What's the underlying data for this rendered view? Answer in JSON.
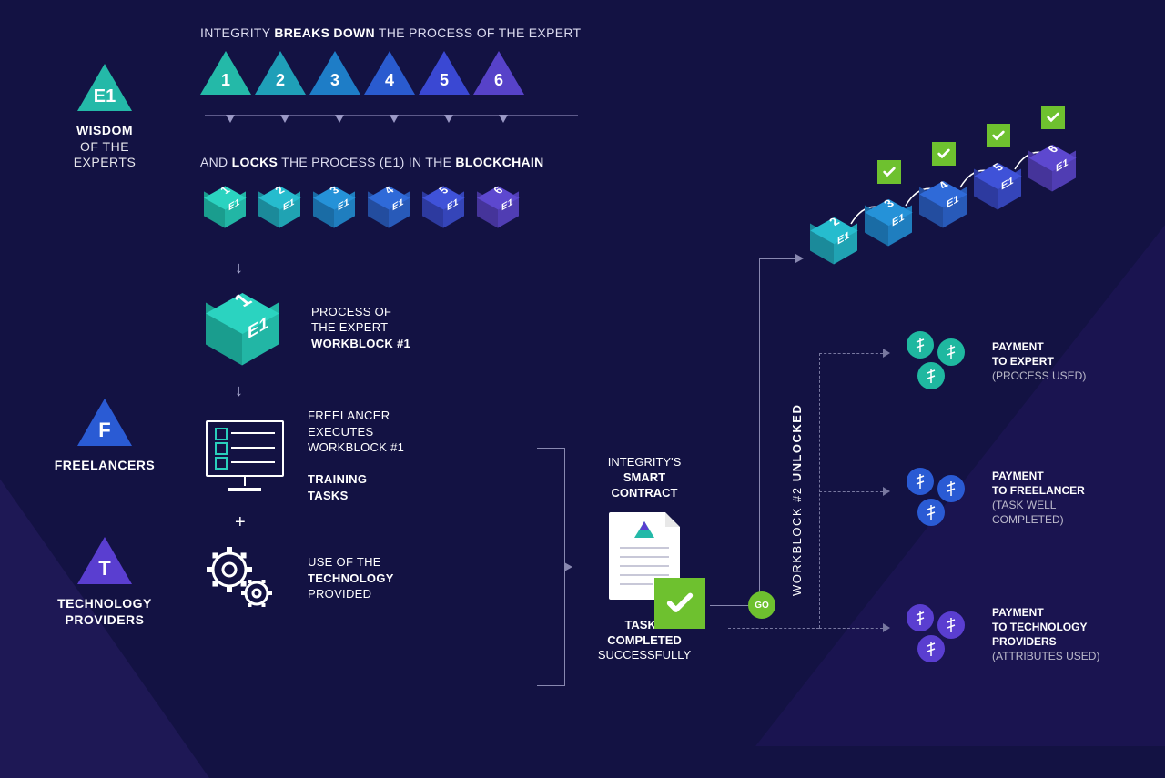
{
  "left": {
    "e1_label": "E1",
    "wisdom_line1": "WISDOM",
    "wisdom_line2": "OF THE",
    "wisdom_line3": "EXPERTS",
    "f_label": "F",
    "freelancers": "FREELANCERS",
    "t_label": "T",
    "tech_providers1": "TECHNOLOGY",
    "tech_providers2": "PROVIDERS"
  },
  "headings": {
    "breaks_pre": "INTEGRITY ",
    "breaks_bold": "BREAKS DOWN",
    "breaks_post": " THE PROCESS OF THE EXPERT",
    "locks_pre": "AND ",
    "locks_bold1": "LOCKS",
    "locks_mid": " THE PROCESS (E1) IN THE ",
    "locks_bold2": "BLOCKCHAIN"
  },
  "triangles": {
    "numbers": [
      "1",
      "2",
      "3",
      "4",
      "5",
      "6"
    ],
    "colors": [
      "#24b9a8",
      "#1f9fb8",
      "#1e7dc7",
      "#2a5bcf",
      "#3a48d3",
      "#5742c9"
    ]
  },
  "cubes_row": {
    "labels": [
      "1",
      "2",
      "3",
      "4",
      "5",
      "6"
    ],
    "sub": "E1",
    "colors_top": [
      "#2bd3c0",
      "#26bcce",
      "#2592d8",
      "#2f6ad8",
      "#3f52d8",
      "#5d48cf"
    ],
    "colors_left": [
      "#1a9d8e",
      "#1b8a9a",
      "#1a6ca5",
      "#234d9f",
      "#2d3a9f",
      "#45349a"
    ],
    "colors_right": [
      "#22b6a5",
      "#20a3b3",
      "#1f7ebf",
      "#285ab9",
      "#3545b9",
      "#503db3"
    ]
  },
  "big_cube": {
    "num": "1",
    "sub": "E1",
    "top": "#2bd3c0",
    "left": "#1a9d8e",
    "right": "#22b6a5",
    "desc1": "PROCESS OF",
    "desc2": "THE EXPERT",
    "desc3": "WORKBLOCK #1"
  },
  "exec": {
    "l1": "FREELANCER",
    "l2": "EXECUTES",
    "l3": "WORKBLOCK #1",
    "l4": "TRAINING",
    "l5": "TASKS",
    "item_color": "#29cfbc"
  },
  "tech": {
    "l1": "USE OF THE",
    "l2": "TECHNOLOGY",
    "l3": "PROVIDED"
  },
  "contract": {
    "h1": "INTEGRITY'S",
    "h2": "SMART",
    "h3": "CONTRACT",
    "t1": "TASKS",
    "t2": "COMPLETED",
    "t3": "SUCCESSFULLY",
    "badge_color": "#6ec12f"
  },
  "unlock": {
    "pre": "WORKBLOCK #2 ",
    "bold": "UNLOCKED",
    "go": "GO"
  },
  "rise_cubes": {
    "top_label": "2",
    "top_label2": "3",
    "top_label3": "4",
    "top_label4": "5",
    "top_label5": "6",
    "sub": "E1"
  },
  "payments": {
    "expert": {
      "l1": "PAYMENT",
      "l2": "TO EXPERT",
      "l3": "(PROCESS USED)",
      "coin_color": "#1fb8a0"
    },
    "freelancer": {
      "l1": "PAYMENT",
      "l2": "TO FREELANCER",
      "l3": "(TASK WELL",
      "l4": "COMPLETED)",
      "coin_color": "#2a5bd4"
    },
    "tech": {
      "l1": "PAYMENT",
      "l2": "TO TECHNOLOGY",
      "l3": "PROVIDERS",
      "l4": "(ATTRIBUTES USED)",
      "coin_color": "#5a3ed0"
    }
  }
}
